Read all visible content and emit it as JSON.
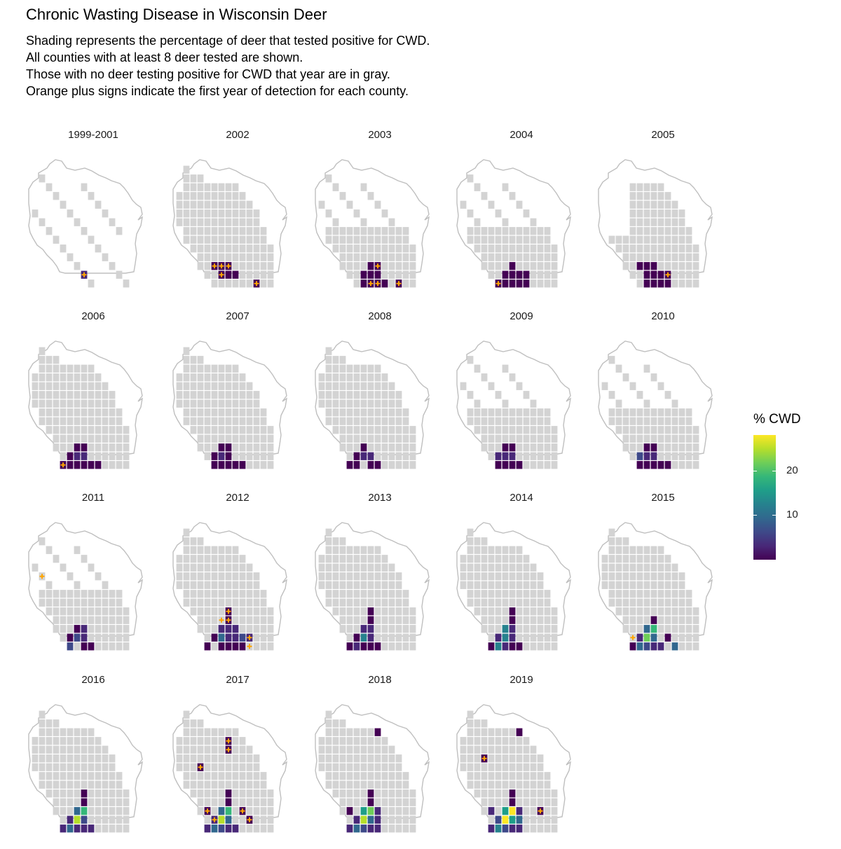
{
  "title": "Chronic Wasting Disease in Wisconsin Deer",
  "subtitle": [
    "Shading represents the percentage of deer that tested positive for CWD.",
    "All counties with at least 8 deer tested are shown.",
    "Those with no deer testing positive for CWD that year are in gray.",
    "Orange plus signs indicate the first year of detection for each county."
  ],
  "colors": {
    "tested_negative": "#d3d3d3",
    "outline": "#bfbfbf",
    "new_detection": "#ffa500",
    "viridis": [
      "#440154",
      "#482878",
      "#3e4989",
      "#31688e",
      "#26828e",
      "#1f9e89",
      "#35b779",
      "#6ece58",
      "#b5de2b",
      "#fde725"
    ]
  },
  "legend": {
    "title": "% CWD",
    "ticks": [
      {
        "label": "10",
        "value": 10
      },
      {
        "label": "20",
        "value": 20
      }
    ],
    "min": 0,
    "max": 28
  },
  "panels": [
    {
      "label": "1999-2001",
      "gray": "sparse",
      "cwd": [
        [
          7,
          12,
          3
        ]
      ],
      "new": [
        [
          7,
          12
        ]
      ]
    },
    {
      "label": "2002",
      "gray": "full",
      "cwd": [
        [
          5,
          11,
          1
        ],
        [
          6,
          11,
          1
        ],
        [
          7,
          11,
          1
        ],
        [
          6,
          12,
          1
        ],
        [
          7,
          12,
          1
        ],
        [
          8,
          12,
          1
        ],
        [
          11,
          13,
          1
        ]
      ],
      "new": [
        [
          5,
          11
        ],
        [
          6,
          11
        ],
        [
          7,
          11
        ],
        [
          6,
          12
        ],
        [
          11,
          13
        ]
      ]
    },
    {
      "label": "2003",
      "gray": "partial",
      "cwd": [
        [
          8,
          11,
          1
        ],
        [
          7,
          11,
          1
        ],
        [
          6,
          12,
          1
        ],
        [
          7,
          12,
          1
        ],
        [
          8,
          12,
          1
        ],
        [
          6,
          13,
          1
        ],
        [
          7,
          13,
          1
        ],
        [
          8,
          13,
          1
        ],
        [
          9,
          13,
          1
        ],
        [
          11,
          13,
          1
        ]
      ],
      "new": [
        [
          8,
          11
        ],
        [
          7,
          13
        ],
        [
          8,
          13
        ],
        [
          11,
          13
        ]
      ]
    },
    {
      "label": "2004",
      "gray": "partial",
      "cwd": [
        [
          7,
          11,
          1
        ],
        [
          6,
          12,
          1
        ],
        [
          7,
          12,
          1
        ],
        [
          8,
          12,
          1
        ],
        [
          9,
          12,
          1
        ],
        [
          5,
          13,
          1
        ],
        [
          6,
          13,
          1
        ],
        [
          7,
          13,
          1
        ],
        [
          8,
          13,
          1
        ],
        [
          9,
          13,
          1
        ]
      ],
      "new": [
        [
          5,
          13
        ]
      ]
    },
    {
      "label": "2005",
      "gray": "mid",
      "cwd": [
        [
          5,
          11,
          1
        ],
        [
          6,
          11,
          1
        ],
        [
          7,
          11,
          1
        ],
        [
          6,
          12,
          1
        ],
        [
          7,
          12,
          1
        ],
        [
          8,
          12,
          1
        ],
        [
          9,
          12,
          1
        ],
        [
          7,
          13,
          1
        ],
        [
          8,
          13,
          1
        ],
        [
          9,
          13,
          1
        ],
        [
          6,
          13,
          1
        ]
      ],
      "new": [
        [
          9,
          12
        ]
      ]
    },
    {
      "label": "2006",
      "gray": "full",
      "cwd": [
        [
          6,
          11,
          1
        ],
        [
          7,
          11,
          1
        ],
        [
          6,
          12,
          2
        ],
        [
          7,
          12,
          2
        ],
        [
          5,
          12,
          1
        ],
        [
          4,
          13,
          1
        ],
        [
          5,
          13,
          1
        ],
        [
          6,
          13,
          1
        ],
        [
          7,
          13,
          1
        ],
        [
          8,
          13,
          1
        ],
        [
          9,
          13,
          1
        ]
      ],
      "new": [
        [
          4,
          13
        ]
      ]
    },
    {
      "label": "2007",
      "gray": "full",
      "cwd": [
        [
          6,
          11,
          1
        ],
        [
          7,
          11,
          1
        ],
        [
          6,
          12,
          2
        ],
        [
          7,
          12,
          1
        ],
        [
          5,
          12,
          1
        ],
        [
          5,
          13,
          1
        ],
        [
          6,
          13,
          1
        ],
        [
          7,
          13,
          1
        ],
        [
          8,
          13,
          1
        ],
        [
          9,
          13,
          1
        ]
      ],
      "new": []
    },
    {
      "label": "2008",
      "gray": "full",
      "cwd": [
        [
          6,
          11,
          1
        ],
        [
          6,
          12,
          2
        ],
        [
          7,
          12,
          4
        ],
        [
          5,
          12,
          1
        ],
        [
          4,
          13,
          1
        ],
        [
          5,
          13,
          1
        ],
        [
          7,
          13,
          1
        ],
        [
          8,
          13,
          1
        ]
      ],
      "new": []
    },
    {
      "label": "2009",
      "gray": "partial",
      "cwd": [
        [
          6,
          11,
          1
        ],
        [
          7,
          11,
          1
        ],
        [
          6,
          12,
          3
        ],
        [
          7,
          12,
          2
        ],
        [
          5,
          12,
          3
        ],
        [
          5,
          13,
          1
        ],
        [
          6,
          13,
          1
        ],
        [
          7,
          13,
          1
        ],
        [
          8,
          13,
          1
        ]
      ],
      "new": []
    },
    {
      "label": "2010",
      "gray": "partial",
      "cwd": [
        [
          6,
          11,
          1
        ],
        [
          7,
          11,
          1
        ],
        [
          6,
          12,
          2
        ],
        [
          7,
          12,
          2
        ],
        [
          5,
          12,
          6
        ],
        [
          5,
          13,
          1
        ],
        [
          6,
          13,
          1
        ],
        [
          7,
          13,
          1
        ],
        [
          8,
          13,
          1
        ],
        [
          9,
          13,
          1
        ]
      ],
      "new": []
    },
    {
      "label": "2011",
      "gray": "partial",
      "cwd": [
        [
          6,
          11,
          1
        ],
        [
          7,
          11,
          2
        ],
        [
          6,
          12,
          6
        ],
        [
          7,
          12,
          3
        ],
        [
          5,
          12,
          1
        ],
        [
          5,
          13,
          5
        ],
        [
          7,
          13,
          1
        ],
        [
          8,
          13,
          1
        ]
      ],
      "new": [
        [
          1,
          5
        ]
      ]
    },
    {
      "label": "2012",
      "gray": "full",
      "cwd": [
        [
          7,
          9,
          1
        ],
        [
          7,
          10,
          1
        ],
        [
          6,
          11,
          3
        ],
        [
          7,
          11,
          3
        ],
        [
          8,
          11,
          2
        ],
        [
          6,
          12,
          10
        ],
        [
          7,
          12,
          3
        ],
        [
          8,
          12,
          3
        ],
        [
          9,
          12,
          6
        ],
        [
          5,
          12,
          1
        ],
        [
          4,
          13,
          1
        ],
        [
          6,
          13,
          1
        ],
        [
          7,
          13,
          1
        ],
        [
          8,
          13,
          1
        ],
        [
          9,
          13,
          1
        ],
        [
          10,
          12,
          2
        ]
      ],
      "new": [
        [
          7,
          9
        ],
        [
          6,
          10
        ],
        [
          7,
          10
        ],
        [
          10,
          12
        ],
        [
          10,
          13
        ]
      ]
    },
    {
      "label": "2013",
      "gray": "full",
      "cwd": [
        [
          7,
          9,
          1
        ],
        [
          7,
          10,
          1
        ],
        [
          6,
          11,
          3
        ],
        [
          7,
          11,
          4
        ],
        [
          6,
          12,
          12
        ],
        [
          7,
          12,
          3
        ],
        [
          5,
          12,
          1
        ],
        [
          4,
          13,
          1
        ],
        [
          5,
          13,
          3
        ],
        [
          6,
          13,
          1
        ],
        [
          7,
          13,
          1
        ],
        [
          8,
          13,
          1
        ]
      ],
      "new": []
    },
    {
      "label": "2014",
      "gray": "full",
      "cwd": [
        [
          7,
          9,
          1
        ],
        [
          7,
          10,
          1
        ],
        [
          6,
          11,
          12
        ],
        [
          7,
          11,
          4
        ],
        [
          6,
          12,
          12
        ],
        [
          7,
          12,
          4
        ],
        [
          5,
          12,
          3
        ],
        [
          4,
          13,
          1
        ],
        [
          5,
          13,
          11
        ],
        [
          6,
          13,
          3
        ],
        [
          7,
          13,
          1
        ],
        [
          8,
          13,
          1
        ]
      ],
      "new": []
    },
    {
      "label": "2015",
      "gray": "full",
      "cwd": [
        [
          7,
          10,
          1
        ],
        [
          7,
          11,
          18
        ],
        [
          6,
          11,
          8
        ],
        [
          6,
          12,
          22
        ],
        [
          7,
          12,
          8
        ],
        [
          5,
          12,
          2
        ],
        [
          4,
          13,
          1
        ],
        [
          5,
          13,
          8
        ],
        [
          6,
          13,
          6
        ],
        [
          7,
          13,
          4
        ],
        [
          8,
          13,
          3
        ],
        [
          9,
          12,
          1
        ],
        [
          10,
          13,
          10
        ]
      ],
      "new": [
        [
          4,
          12
        ]
      ]
    },
    {
      "label": "2016",
      "gray": "full",
      "cwd": [
        [
          7,
          9,
          1
        ],
        [
          7,
          10,
          1
        ],
        [
          6,
          11,
          10
        ],
        [
          7,
          11,
          20
        ],
        [
          6,
          12,
          26
        ],
        [
          7,
          12,
          6
        ],
        [
          5,
          12,
          3
        ],
        [
          4,
          13,
          2
        ],
        [
          5,
          13,
          10
        ],
        [
          6,
          13,
          4
        ],
        [
          7,
          13,
          3
        ],
        [
          8,
          13,
          3
        ]
      ],
      "new": []
    },
    {
      "label": "2017",
      "gray": "full",
      "cwd": [
        [
          7,
          3,
          1
        ],
        [
          7,
          4,
          1
        ],
        [
          7,
          9,
          1
        ],
        [
          7,
          10,
          1
        ],
        [
          6,
          11,
          10
        ],
        [
          7,
          11,
          20
        ],
        [
          6,
          12,
          24
        ],
        [
          7,
          12,
          8
        ],
        [
          5,
          12,
          3
        ],
        [
          4,
          13,
          2
        ],
        [
          5,
          13,
          8
        ],
        [
          6,
          13,
          5
        ],
        [
          7,
          13,
          3
        ],
        [
          8,
          13,
          3
        ],
        [
          3,
          6,
          1
        ],
        [
          4,
          11,
          1
        ],
        [
          9,
          11,
          1
        ],
        [
          10,
          12,
          1
        ]
      ],
      "new": [
        [
          7,
          3
        ],
        [
          7,
          4
        ],
        [
          3,
          6
        ],
        [
          4,
          11
        ],
        [
          5,
          12
        ],
        [
          9,
          11
        ],
        [
          10,
          12
        ]
      ]
    },
    {
      "label": "2018",
      "gray": "full",
      "cwd": [
        [
          8,
          2,
          1
        ],
        [
          7,
          9,
          1
        ],
        [
          7,
          10,
          1
        ],
        [
          6,
          11,
          14
        ],
        [
          7,
          11,
          22
        ],
        [
          6,
          12,
          26
        ],
        [
          7,
          12,
          10
        ],
        [
          5,
          12,
          4
        ],
        [
          4,
          11,
          1
        ],
        [
          4,
          13,
          3
        ],
        [
          5,
          13,
          10
        ],
        [
          6,
          13,
          5
        ],
        [
          7,
          13,
          3
        ],
        [
          8,
          13,
          3
        ],
        [
          8,
          12,
          3
        ],
        [
          8,
          11,
          2
        ]
      ],
      "new": []
    },
    {
      "label": "2019",
      "gray": "full",
      "cwd": [
        [
          8,
          2,
          1
        ],
        [
          7,
          9,
          1
        ],
        [
          7,
          10,
          1
        ],
        [
          6,
          11,
          14
        ],
        [
          7,
          11,
          28
        ],
        [
          6,
          12,
          28
        ],
        [
          7,
          12,
          14
        ],
        [
          5,
          12,
          5
        ],
        [
          4,
          11,
          2
        ],
        [
          4,
          13,
          4
        ],
        [
          5,
          13,
          12
        ],
        [
          6,
          13,
          6
        ],
        [
          7,
          13,
          4
        ],
        [
          8,
          13,
          3
        ],
        [
          8,
          12,
          10
        ],
        [
          8,
          11,
          3
        ],
        [
          11,
          11,
          1
        ],
        [
          3,
          5,
          1
        ]
      ],
      "new": [
        [
          3,
          5
        ],
        [
          11,
          11
        ]
      ]
    }
  ]
}
